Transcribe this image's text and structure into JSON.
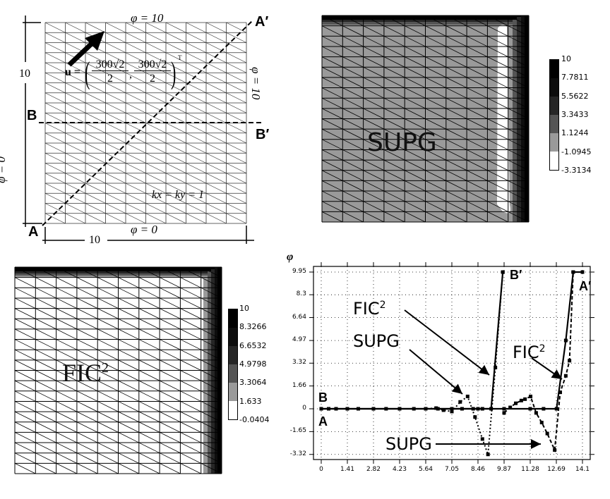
{
  "figure": {
    "panels": [
      "problem-setup",
      "supg-contour",
      "fic2-contour",
      "profile-plot"
    ]
  },
  "setup": {
    "top_bc": "φ = 10",
    "bottom_bc": "φ = 0",
    "left_bc": "φ = 0",
    "right_bc": "φ = 10",
    "width_label": "10",
    "height_label": "10",
    "velocity_label": "u =",
    "velocity_num": "300√2",
    "velocity_den": "2",
    "velocity_sup": "T",
    "diffusivity": "kx = ky = 1",
    "point_A": "A",
    "point_A_prime": "A′",
    "point_B": "B",
    "point_B_prime": "B′",
    "mesh_cols": 10,
    "mesh_rows": 20
  },
  "supg": {
    "title": "SUPG",
    "legend": [
      "10",
      "7.7811",
      "5.5622",
      "3.3433",
      "1.1244",
      "-1.0945",
      "-3.3134"
    ],
    "legend_colors": [
      "#000000",
      "#0d0d0d",
      "#262626",
      "#555555",
      "#9a9a9a",
      "#ffffff"
    ]
  },
  "fic2": {
    "title": "FIC",
    "title_sup": "2",
    "legend": [
      "10",
      "8.3266",
      "6.6532",
      "4.9798",
      "3.3064",
      "1.633",
      "-0.0404"
    ],
    "legend_colors": [
      "#000000",
      "#0d0d0d",
      "#262626",
      "#555555",
      "#9a9a9a",
      "#ffffff"
    ]
  },
  "chart_data": {
    "type": "line",
    "title": "",
    "xlabel": "",
    "ylabel": "φ",
    "xlim": [
      0,
      14.1
    ],
    "ylim": [
      -3.32,
      9.95
    ],
    "grid": "dotted",
    "x_ticks": [
      "0",
      "1.41",
      "2.82",
      "4.23",
      "5.64",
      "7.05",
      "8.46",
      "9.87",
      "11.28",
      "12.69",
      "14.1"
    ],
    "y_ticks": [
      "9.95",
      "8.3",
      "6.64",
      "4.97",
      "3.32",
      "1.66",
      "0",
      "-1.65",
      "-3.32"
    ],
    "series": [
      {
        "name": "FIC2 (B-B′)",
        "style": "solid",
        "x": [
          0,
          0.4,
          0.8,
          1.41,
          2.0,
          2.82,
          3.5,
          4.23,
          5.0,
          5.64,
          6.3,
          7.05,
          7.6,
          8.2,
          8.7,
          9.17,
          9.8
        ],
        "y": [
          0,
          0,
          0,
          0,
          0,
          0,
          0,
          0,
          0,
          0,
          0,
          0,
          0,
          0,
          0,
          0,
          9.95
        ]
      },
      {
        "name": "SUPG (B-B′)",
        "style": "dotted",
        "x": [
          0,
          1.41,
          2.82,
          4.23,
          5.64,
          6.2,
          6.6,
          7.05,
          7.5,
          7.9,
          8.3,
          8.7,
          9.0,
          9.4,
          9.8
        ],
        "y": [
          0,
          0,
          0,
          0,
          0,
          0.05,
          -0.1,
          -0.2,
          0.5,
          0.9,
          -0.6,
          -2.2,
          -3.32,
          3.0,
          9.95
        ]
      },
      {
        "name": "FIC2 (A-A′)",
        "style": "solid",
        "x": [
          0,
          1.41,
          2.82,
          4.23,
          5.64,
          7.05,
          8.46,
          9.87,
          11.28,
          12.0,
          12.7,
          13.2,
          13.6,
          14.1
        ],
        "y": [
          0,
          0,
          0,
          0,
          0,
          0,
          0,
          0,
          0,
          0,
          0,
          4.97,
          9.95,
          9.95
        ]
      },
      {
        "name": "SUPG (A-A′)",
        "style": "dashed",
        "x": [
          9.87,
          10.2,
          10.5,
          10.8,
          11.0,
          11.3,
          11.6,
          11.9,
          12.2,
          12.6,
          12.9,
          13.2,
          13.4,
          13.6
        ],
        "y": [
          -0.3,
          0.1,
          0.4,
          0.6,
          0.7,
          0.9,
          -0.3,
          -1.0,
          -1.8,
          -3.0,
          1.2,
          2.4,
          3.5,
          9.95
        ]
      }
    ],
    "annotations": [
      {
        "text": "FIC²",
        "target": "B-B′ FIC2 curve"
      },
      {
        "text": "SUPG",
        "target": "B-B′ SUPG curve"
      },
      {
        "text": "FIC²",
        "target": "A-A′ FIC2 curve"
      },
      {
        "text": "SUPG",
        "target": "A-A′ SUPG trough"
      },
      {
        "text": "A"
      },
      {
        "text": "B"
      },
      {
        "text": "A′"
      },
      {
        "text": "B′"
      }
    ]
  },
  "plot": {
    "ylabel": "φ",
    "label_fic_1": "FIC",
    "label_supg_1": "SUPG",
    "label_fic_2": "FIC",
    "label_supg_2": "SUPG",
    "sup2": "2",
    "label_A": "A",
    "label_B": "B",
    "label_A_prime": "A′",
    "label_B_prime": "B′"
  }
}
